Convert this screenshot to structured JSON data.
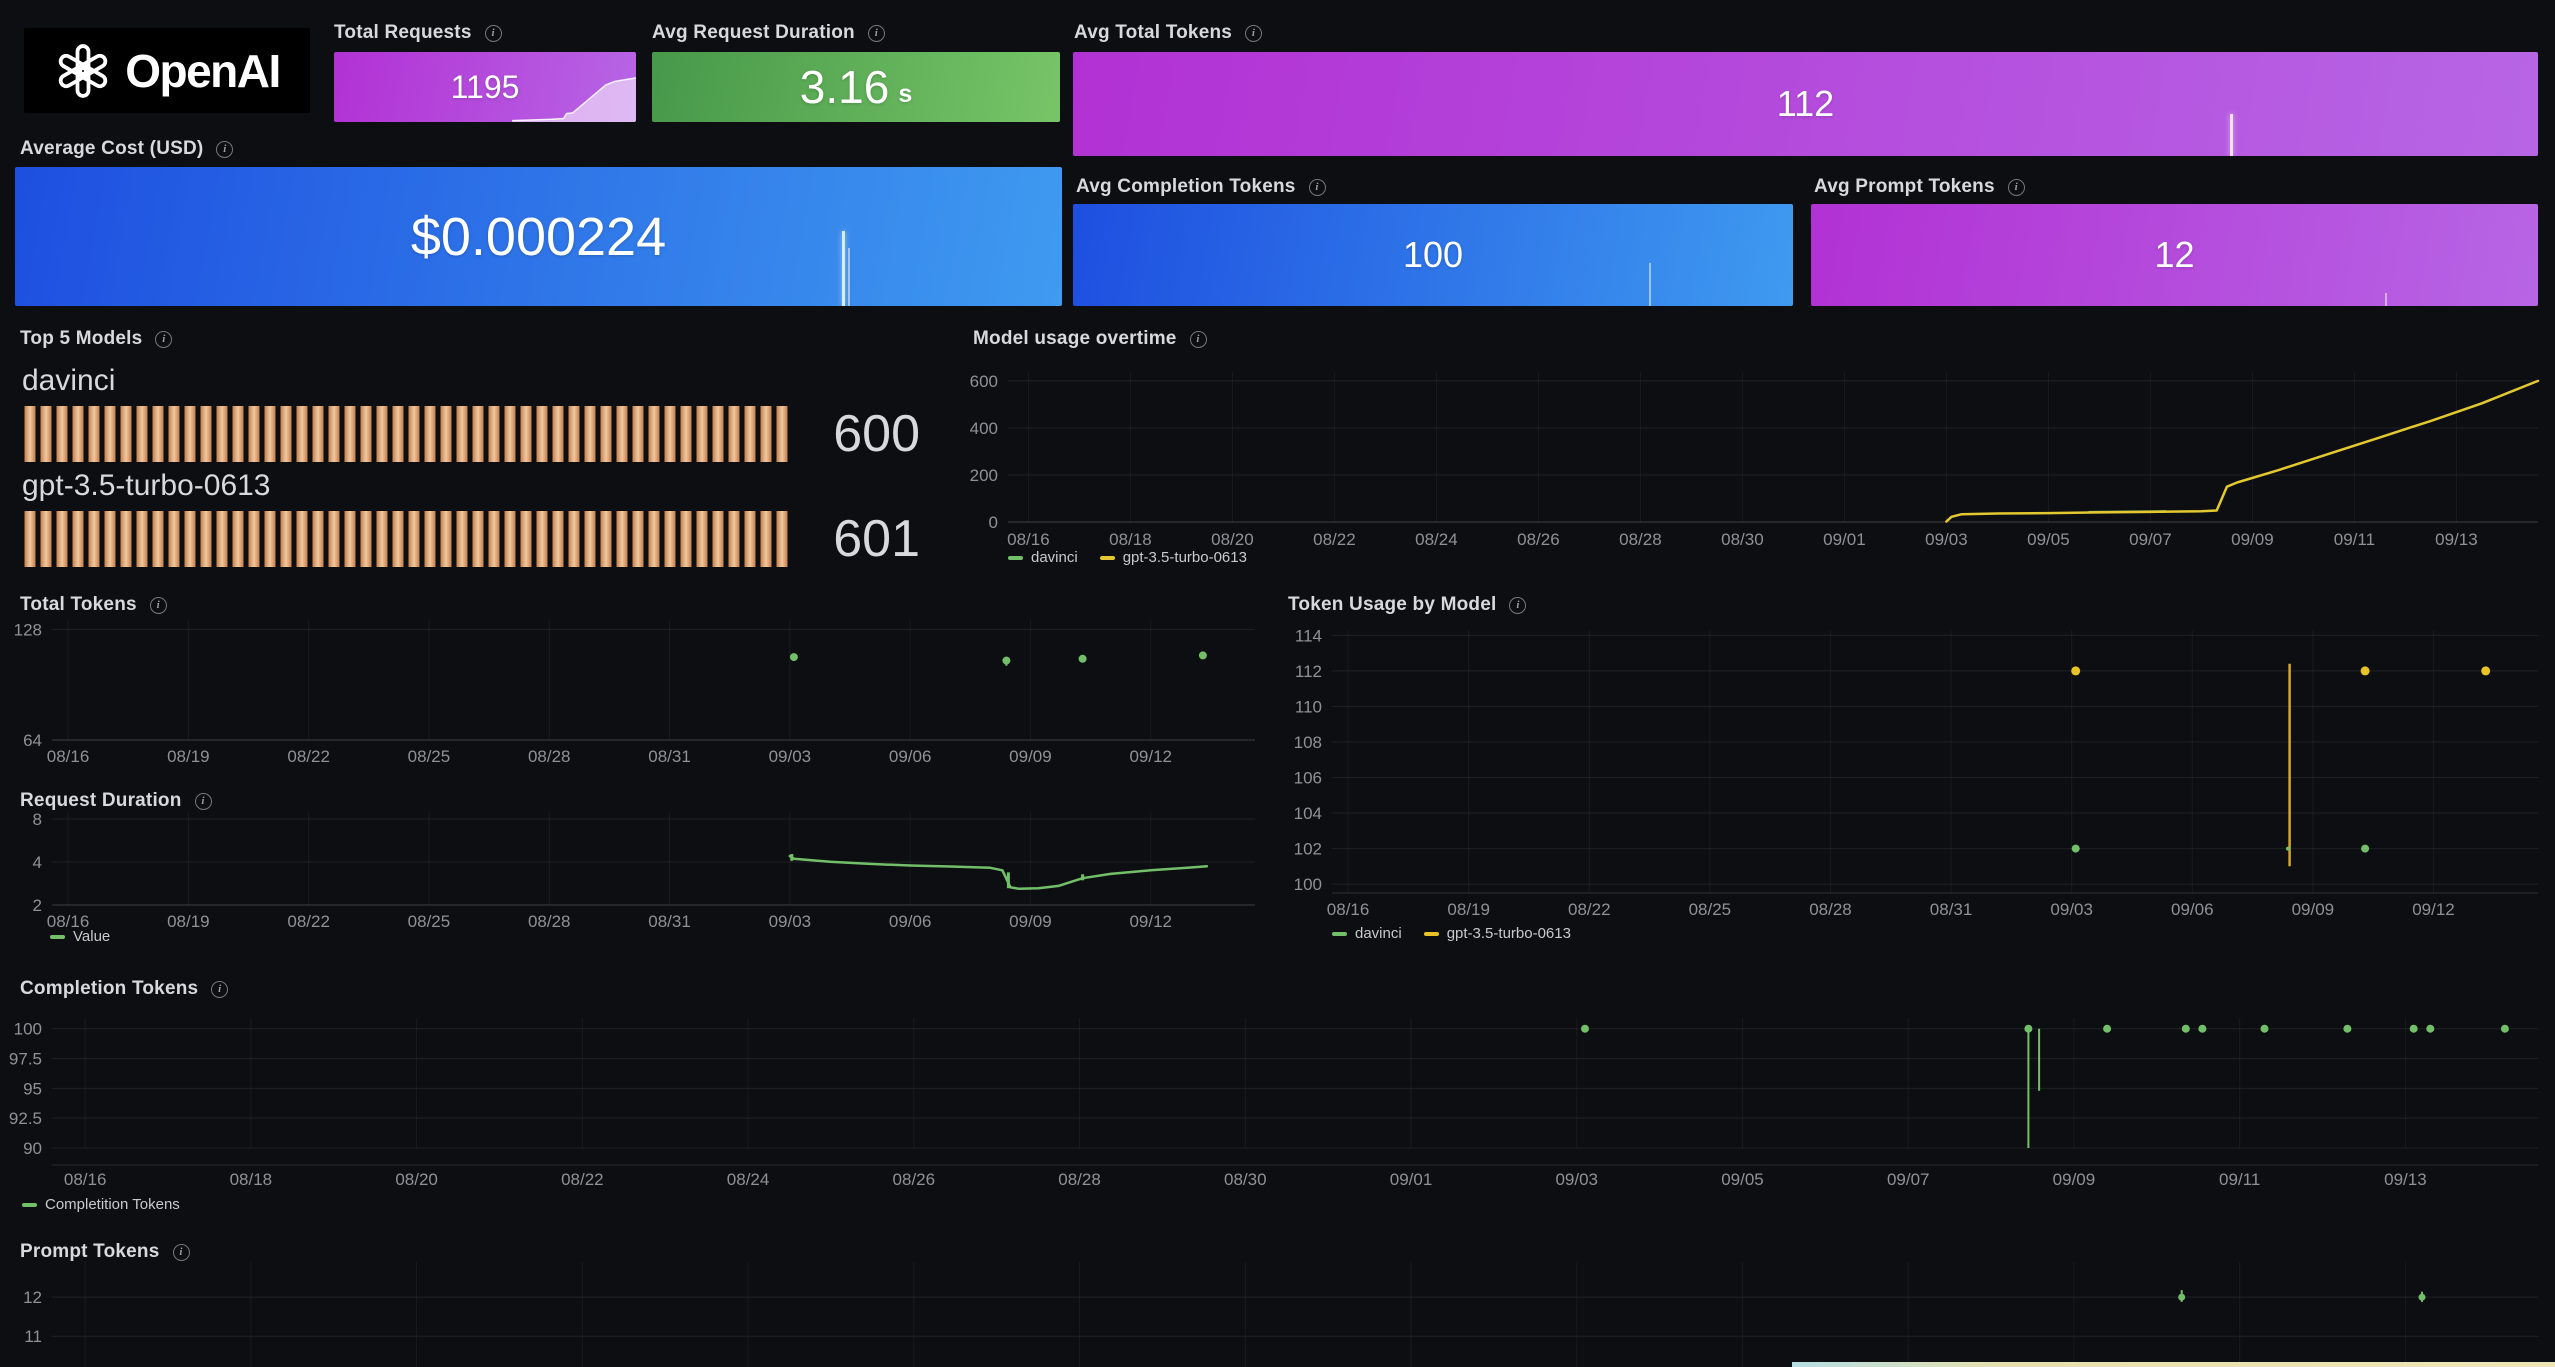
{
  "logo": {
    "text": "OpenAI"
  },
  "colors": {
    "magenta_from": "#b231d4",
    "magenta_to": "#b765e5",
    "green_from": "#47984a",
    "green_to": "#77c567",
    "blue_from": "#1e4fe0",
    "blue_to": "#3f9af0",
    "bar_orange": "#e8ae83",
    "chart_green": "#73bf69",
    "chart_yellow": "#e3c92f",
    "background": "#0d0e12"
  },
  "stats": [
    {
      "title": "Total Requests",
      "value": "1195"
    },
    {
      "title": "Avg Request Duration",
      "value": "3.16",
      "suffix": "s"
    },
    {
      "title": "Avg Total Tokens",
      "value": "112"
    },
    {
      "title": "Average Cost (USD)",
      "value": "$0.000224"
    },
    {
      "title": "Avg Completion Tokens",
      "value": "100"
    },
    {
      "title": "Avg Prompt Tokens",
      "value": "12"
    }
  ],
  "chart_data": [
    {
      "id": "model_usage_overtime",
      "type": "line",
      "title": "Model usage overtime",
      "x_unit": "days since 08/16",
      "xlim": [
        -0.4,
        29.6
      ],
      "ylim": [
        0,
        638
      ],
      "yticks": [
        {
          "v": 0,
          "label": "0"
        },
        {
          "v": 200,
          "label": "200"
        },
        {
          "v": 400,
          "label": "400"
        },
        {
          "v": 600,
          "label": "600"
        }
      ],
      "xticks": [
        {
          "d": 0,
          "label": "08/16"
        },
        {
          "d": 2,
          "label": "08/18"
        },
        {
          "d": 4,
          "label": "08/20"
        },
        {
          "d": 6,
          "label": "08/22"
        },
        {
          "d": 8,
          "label": "08/24"
        },
        {
          "d": 10,
          "label": "08/26"
        },
        {
          "d": 12,
          "label": "08/28"
        },
        {
          "d": 14,
          "label": "08/30"
        },
        {
          "d": 16,
          "label": "09/01"
        },
        {
          "d": 18,
          "label": "09/03"
        },
        {
          "d": 20,
          "label": "09/05"
        },
        {
          "d": 22,
          "label": "09/07"
        },
        {
          "d": 24,
          "label": "09/09"
        },
        {
          "d": 26,
          "label": "09/11"
        },
        {
          "d": 28,
          "label": "09/13"
        }
      ],
      "series": [
        {
          "name": "davinci",
          "type": "line",
          "color": "#73bf69",
          "width": 2.5,
          "points": [
            [
              20.8,
              42
            ],
            [
              22.3,
              45
            ]
          ]
        },
        {
          "name": "gpt-3.5-turbo-0613",
          "type": "line",
          "color": "#e3c92f",
          "width": 2.5,
          "points": [
            [
              18,
              2
            ],
            [
              18.1,
              22
            ],
            [
              18.3,
              33
            ],
            [
              19,
              36
            ],
            [
              20,
              38
            ],
            [
              21,
              41
            ],
            [
              22,
              43
            ],
            [
              23,
              46
            ],
            [
              23.3,
              49
            ],
            [
              23.5,
              150
            ],
            [
              23.7,
              168
            ],
            [
              24.5,
              220
            ],
            [
              25.5,
              290
            ],
            [
              26.5,
              360
            ],
            [
              27.5,
              430
            ],
            [
              28.5,
              505
            ],
            [
              29.6,
              600
            ]
          ]
        }
      ],
      "legend": [
        {
          "label": "davinci",
          "color": "#73bf69"
        },
        {
          "label": "gpt-3.5-turbo-0613",
          "color": "#e3c92f"
        }
      ],
      "legend_position": "bottom-left"
    },
    {
      "id": "total_tokens",
      "type": "scatter",
      "title": "Total Tokens",
      "x_unit": "days since 08/16",
      "xlim": [
        -0.4,
        29.6
      ],
      "ylim": [
        64,
        133.5
      ],
      "yticks": [
        {
          "v": 128,
          "label": "128"
        },
        {
          "v": 64,
          "label": "64"
        }
      ],
      "xticks": [
        {
          "d": 0,
          "label": "08/16"
        },
        {
          "d": 3,
          "label": "08/19"
        },
        {
          "d": 6,
          "label": "08/22"
        },
        {
          "d": 9,
          "label": "08/25"
        },
        {
          "d": 12,
          "label": "08/28"
        },
        {
          "d": 15,
          "label": "08/31"
        },
        {
          "d": 18,
          "label": "09/03"
        },
        {
          "d": 21,
          "label": "09/06"
        },
        {
          "d": 24,
          "label": "09/09"
        },
        {
          "d": 27,
          "label": "09/12"
        }
      ],
      "series": [
        {
          "name": "Total Tokens",
          "type": "points",
          "color": "#73bf69",
          "r": 4,
          "points": [
            [
              18.1,
              112
            ],
            [
              23.4,
              110
            ],
            [
              25.3,
              111
            ],
            [
              28.3,
              113
            ]
          ]
        },
        {
          "name": "Total Tokens spread",
          "type": "vlines",
          "color": "#73bf69",
          "width": 2,
          "segs": [
            [
              23.4,
              107,
              112
            ]
          ]
        }
      ]
    },
    {
      "id": "token_usage_by_model",
      "type": "scatter",
      "title": "Token Usage by Model",
      "x_unit": "days since 08/16",
      "xlim": [
        -0.4,
        29.6
      ],
      "ylim": [
        99.5,
        114.3
      ],
      "yticks": [
        {
          "v": 114,
          "label": "114"
        },
        {
          "v": 112,
          "label": "112"
        },
        {
          "v": 110,
          "label": "110"
        },
        {
          "v": 108,
          "label": "108"
        },
        {
          "v": 106,
          "label": "106"
        },
        {
          "v": 104,
          "label": "104"
        },
        {
          "v": 102,
          "label": "102"
        },
        {
          "v": 100,
          "label": "100"
        }
      ],
      "xticks": [
        {
          "d": 0,
          "label": "08/16"
        },
        {
          "d": 3,
          "label": "08/19"
        },
        {
          "d": 6,
          "label": "08/22"
        },
        {
          "d": 9,
          "label": "08/25"
        },
        {
          "d": 12,
          "label": "08/28"
        },
        {
          "d": 15,
          "label": "08/31"
        },
        {
          "d": 18,
          "label": "09/03"
        },
        {
          "d": 21,
          "label": "09/06"
        },
        {
          "d": 24,
          "label": "09/09"
        },
        {
          "d": 27,
          "label": "09/12"
        }
      ],
      "series": [
        {
          "name": "gpt-3.5-turbo-0613",
          "type": "points",
          "color": "#e9c326",
          "r": 4.5,
          "points": [
            [
              18.1,
              112
            ],
            [
              25.3,
              112
            ],
            [
              28.3,
              112
            ]
          ]
        },
        {
          "name": "gpt-3.5-turbo-0613 spike",
          "type": "vlines",
          "color": "#cfa922",
          "width": 2.5,
          "segs": [
            [
              23.42,
              101,
              112.4
            ]
          ]
        },
        {
          "name": "davinci",
          "type": "points",
          "color": "#73bf69",
          "r": 4,
          "points": [
            [
              18.1,
              102
            ],
            [
              25.3,
              102
            ]
          ]
        },
        {
          "name": "davinci small",
          "type": "points",
          "color": "#73bf69",
          "r": 2,
          "points": [
            [
              23.38,
              102
            ]
          ]
        }
      ],
      "legend": [
        {
          "label": "davinci",
          "color": "#73bf69"
        },
        {
          "label": "gpt-3.5-turbo-0613",
          "color": "#e9c326"
        }
      ],
      "legend_position": "bottom-left"
    },
    {
      "id": "request_duration",
      "type": "line",
      "title": "Request Duration",
      "x_unit": "days since 08/16",
      "yscale": "log2",
      "xlim": [
        -0.4,
        29.6
      ],
      "ylim": [
        2,
        8.95
      ],
      "yticks": [
        {
          "v": 8,
          "label": "8"
        },
        {
          "v": 4,
          "label": "4"
        },
        {
          "v": 2,
          "label": "2"
        }
      ],
      "xticks": [
        {
          "d": 0,
          "label": "08/16"
        },
        {
          "d": 3,
          "label": "08/19"
        },
        {
          "d": 6,
          "label": "08/22"
        },
        {
          "d": 9,
          "label": "08/25"
        },
        {
          "d": 12,
          "label": "08/28"
        },
        {
          "d": 15,
          "label": "08/31"
        },
        {
          "d": 18,
          "label": "09/03"
        },
        {
          "d": 21,
          "label": "09/06"
        },
        {
          "d": 24,
          "label": "09/09"
        },
        {
          "d": 27,
          "label": "09/12"
        }
      ],
      "series": [
        {
          "name": "Value",
          "type": "line",
          "color": "#73bf69",
          "width": 2.5,
          "points": [
            [
              18,
              4.4
            ],
            [
              18.1,
              4.22
            ],
            [
              19,
              4.02
            ],
            [
              20,
              3.88
            ],
            [
              21,
              3.78
            ],
            [
              22,
              3.72
            ],
            [
              23,
              3.64
            ],
            [
              23.3,
              3.5
            ],
            [
              23.5,
              2.66
            ],
            [
              23.7,
              2.6
            ],
            [
              24.2,
              2.62
            ],
            [
              24.7,
              2.72
            ],
            [
              25.3,
              3.08
            ],
            [
              26,
              3.3
            ],
            [
              27,
              3.5
            ],
            [
              28,
              3.66
            ],
            [
              28.4,
              3.74
            ]
          ]
        },
        {
          "name": "Value spread",
          "type": "vlines",
          "color": "#73bf69",
          "width": 3,
          "segs": [
            [
              18.05,
              4.08,
              4.55
            ],
            [
              23.45,
              2.62,
              3.38
            ],
            [
              25.3,
              2.98,
              3.28
            ]
          ]
        }
      ],
      "legend": [
        {
          "label": "Value",
          "color": "#73bf69"
        }
      ],
      "legend_position": "bottom-left"
    },
    {
      "id": "completion_tokens",
      "type": "scatter",
      "title": "Completion Tokens",
      "x_unit": "days since 08/16",
      "xlim": [
        -0.4,
        29.6
      ],
      "ylim": [
        90,
        100.9
      ],
      "yticks": [
        {
          "v": 100,
          "label": "100"
        },
        {
          "v": 97.5,
          "label": "97.5"
        },
        {
          "v": 95,
          "label": "95"
        },
        {
          "v": 92.5,
          "label": "92.5"
        },
        {
          "v": 90,
          "label": "90"
        }
      ],
      "xticks": [
        {
          "d": 0,
          "label": "08/16"
        },
        {
          "d": 2,
          "label": "08/18"
        },
        {
          "d": 4,
          "label": "08/20"
        },
        {
          "d": 6,
          "label": "08/22"
        },
        {
          "d": 8,
          "label": "08/24"
        },
        {
          "d": 10,
          "label": "08/26"
        },
        {
          "d": 12,
          "label": "08/28"
        },
        {
          "d": 14,
          "label": "08/30"
        },
        {
          "d": 16,
          "label": "09/01"
        },
        {
          "d": 18,
          "label": "09/03"
        },
        {
          "d": 20,
          "label": "09/05"
        },
        {
          "d": 22,
          "label": "09/07"
        },
        {
          "d": 24,
          "label": "09/09"
        },
        {
          "d": 26,
          "label": "09/11"
        },
        {
          "d": 28,
          "label": "09/13"
        }
      ],
      "series": [
        {
          "name": "Completition Tokens",
          "type": "points",
          "color": "#73bf69",
          "r": 4,
          "points": [
            [
              18.1,
              100
            ],
            [
              23.45,
              100
            ],
            [
              24.4,
              100
            ],
            [
              25.35,
              100
            ],
            [
              25.55,
              100
            ],
            [
              26.3,
              100
            ],
            [
              27.3,
              100
            ],
            [
              28.1,
              100
            ],
            [
              28.3,
              100
            ],
            [
              29.2,
              100
            ]
          ]
        },
        {
          "name": "Completition Tokens spike",
          "type": "vlines",
          "color": "#73bf69",
          "width": 2,
          "segs": [
            [
              23.45,
              90,
              100
            ],
            [
              23.58,
              94.8,
              100
            ]
          ]
        }
      ],
      "legend": [
        {
          "label": "Completition Tokens",
          "color": "#73bf69"
        }
      ],
      "legend_position": "bottom-left"
    },
    {
      "id": "prompt_tokens",
      "type": "scatter",
      "title": "Prompt Tokens",
      "x_unit": "days since 08/16",
      "xlim": [
        -0.4,
        29.6
      ],
      "ylim": [
        8.6,
        12.9
      ],
      "yticks": [
        {
          "v": 12,
          "label": "12"
        },
        {
          "v": 11,
          "label": "11"
        }
      ],
      "xgrid": [
        0,
        2,
        4,
        6,
        8,
        10,
        12,
        14,
        16,
        18,
        20,
        22,
        24,
        26,
        28
      ],
      "series": [
        {
          "name": "Prompt Tokens",
          "type": "points",
          "color": "#73bf69",
          "r": 3.5,
          "points": [
            [
              25.3,
              12
            ],
            [
              28.2,
              12
            ]
          ]
        },
        {
          "name": "Prompt Tokens spread",
          "type": "vlines",
          "color": "#73bf69",
          "width": 2,
          "segs": [
            [
              25.3,
              11.88,
              12.18
            ],
            [
              28.2,
              11.88,
              12.14
            ]
          ]
        }
      ]
    },
    {
      "id": "top_5_models",
      "type": "bar",
      "title": "Top 5 Models",
      "orientation": "horizontal",
      "display": "lcd-gauge",
      "categories": [
        "davinci",
        "gpt-3.5-turbo-0613"
      ],
      "values": [
        600,
        601
      ]
    }
  ]
}
